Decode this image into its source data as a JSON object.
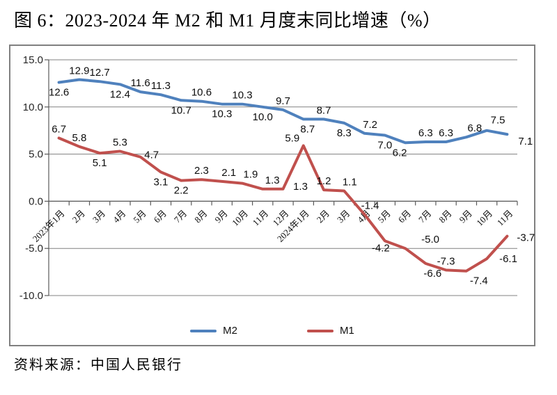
{
  "title": "图 6：2023-2024 年 M2 和 M1 月度末同比增速（%）",
  "source": "资料来源：中国人民银行",
  "style": {
    "grid_color": "#808080",
    "axis_color": "#595959",
    "label_color": "#0d0d0d",
    "border_color": "#808080",
    "background": "#ffffff"
  },
  "chart_data": {
    "type": "line",
    "title": "图 6：2023-2024 年 M2 和 M1 月度末同比增速（%）",
    "xlabel": "",
    "ylabel": "",
    "ylim": [
      -10,
      15
    ],
    "yticks": [
      15,
      10,
      5,
      0,
      -5,
      -10
    ],
    "grid": true,
    "legend_position": "bottom",
    "x": [
      "2023年1月",
      "2月",
      "3月",
      "4月",
      "5月",
      "6月",
      "7月",
      "8月",
      "9月",
      "10月",
      "11月",
      "12月",
      "2024年1月",
      "2月",
      "3月",
      "4月",
      "5月",
      "6月",
      "7月",
      "8月",
      "9月",
      "10月",
      "11月"
    ],
    "series": [
      {
        "name": "M2",
        "color": "#4f81bd",
        "values": [
          12.6,
          12.9,
          12.7,
          12.4,
          11.6,
          11.3,
          10.7,
          10.6,
          10.3,
          10.3,
          10.0,
          9.7,
          8.7,
          8.7,
          8.3,
          7.2,
          7.0,
          6.2,
          6.3,
          6.3,
          6.8,
          7.5,
          7.1
        ],
        "label_side": [
          "below",
          "above",
          "above",
          "below",
          "above",
          "above",
          "below",
          "above",
          "below",
          "above",
          "below",
          "above",
          "below",
          "above",
          "below",
          "above",
          "below",
          "below",
          "above",
          "above",
          "above",
          "above",
          "right"
        ],
        "label_adjust": {
          "12": [
            6,
            0
          ],
          "15": [
            8,
            0
          ],
          "17": [
            -8,
            0
          ],
          "20": [
            12,
            0
          ],
          "21": [
            16,
            -2
          ],
          "22": [
            6,
            10
          ]
        }
      },
      {
        "name": "M1",
        "color": "#c0504d",
        "values": [
          6.7,
          5.8,
          5.1,
          5.3,
          4.7,
          3.1,
          2.2,
          2.3,
          2.1,
          1.9,
          1.3,
          1.3,
          5.9,
          1.2,
          1.1,
          -1.4,
          -4.2,
          -5.0,
          -6.6,
          -7.3,
          -7.4,
          -6.1,
          -3.7
        ],
        "label_side": [
          "above",
          "above",
          "below",
          "above",
          "above",
          "below",
          "below",
          "above",
          "above",
          "above",
          "above",
          "below",
          "above",
          "above",
          "above",
          "above",
          "below",
          "above",
          "below",
          "above",
          "below",
          "right",
          "right"
        ],
        "label_adjust": {
          "4": [
            16,
            10
          ],
          "8": [
            10,
            0
          ],
          "9": [
            12,
            0
          ],
          "10": [
            14,
            0
          ],
          "11": [
            25,
            -18
          ],
          "12": [
            -16,
            2
          ],
          "14": [
            8,
            0
          ],
          "15": [
            8,
            0
          ],
          "16": [
            -6,
            -4
          ],
          "17": [
            36,
            0
          ],
          "18": [
            10,
            0
          ],
          "20": [
            18,
            0
          ],
          "21": [
            8,
            0
          ],
          "22": [
            4,
            2
          ]
        }
      }
    ]
  }
}
